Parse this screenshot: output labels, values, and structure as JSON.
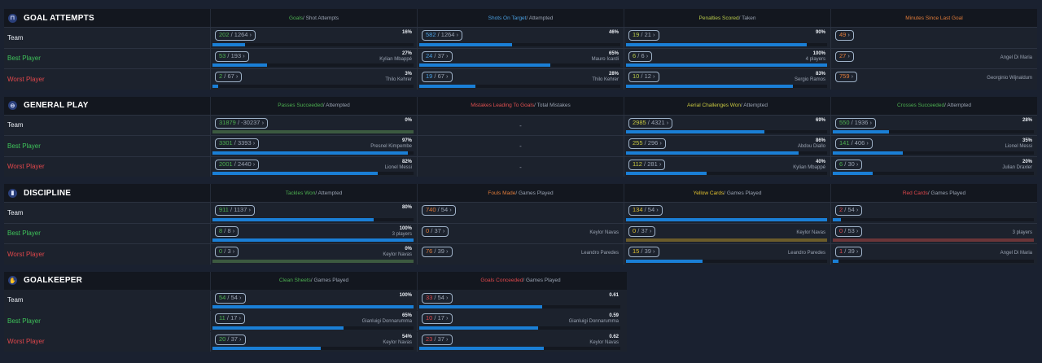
{
  "row_labels": {
    "team": {
      "text": "Team",
      "color": "#e8ecf2"
    },
    "best": {
      "text": "Best Player",
      "color": "#3ec45a"
    },
    "worst": {
      "text": "Worst Player",
      "color": "#e0474b"
    }
  },
  "sections": [
    {
      "title": "GOAL ATTEMPTS",
      "icon": "goal-icon",
      "glyph": "⊓",
      "columns": [
        {
          "hl": "Goals",
          "rest": " / Shot Attempts",
          "color": "#4caf50"
        },
        {
          "hl": "Shots On Target",
          "rest": " / Attempted",
          "color": "#4a9fe0"
        },
        {
          "hl": "Penalties Scored",
          "rest": " / Taken",
          "color": "#b8c94a"
        },
        {
          "hl": "Minutes Since Last Goal",
          "rest": "",
          "color": "#e07b39"
        }
      ],
      "rows": [
        {
          "key": "team",
          "cells": [
            {
              "a": "202",
              "b": "1264",
              "pct": "16%",
              "fill": 0.16
            },
            {
              "a": "582",
              "b": "1264",
              "pct": "46%",
              "fill": 0.46
            },
            {
              "a": "19",
              "b": "21",
              "pct": "90%",
              "fill": 0.9
            },
            {
              "a": "49"
            }
          ]
        },
        {
          "key": "best",
          "cells": [
            {
              "a": "53",
              "b": "193",
              "pct": "27%",
              "sub": "Kylian Mbappé",
              "fill": 0.27
            },
            {
              "a": "24",
              "b": "37",
              "pct": "65%",
              "sub": "Mauro Icardi",
              "fill": 0.65
            },
            {
              "a": "6",
              "b": "6",
              "pct": "100%",
              "sub": "4 players",
              "fill": 1
            },
            {
              "a": "27",
              "sub": "Angel Di Maria"
            }
          ]
        },
        {
          "key": "worst",
          "cells": [
            {
              "a": "2",
              "b": "67",
              "pct": "3%",
              "sub": "Thilo Kehrer",
              "fill": 0.03
            },
            {
              "a": "19",
              "b": "67",
              "pct": "28%",
              "sub": "Thilo Kehrer",
              "fill": 0.28
            },
            {
              "a": "10",
              "b": "12",
              "pct": "83%",
              "sub": "Sergio Ramos",
              "fill": 0.83
            },
            {
              "a": "759",
              "sub": "Georginio Wijnaldum"
            }
          ]
        }
      ]
    },
    {
      "title": "GENERAL PLAY",
      "icon": "globe-icon",
      "glyph": "⊖",
      "columns": [
        {
          "hl": "Passes Succeeded",
          "rest": " / Attempted",
          "color": "#4caf50"
        },
        {
          "hl": "Mistakes Leading To Goals",
          "rest": " / Total Mistakes",
          "color": "#e05050"
        },
        {
          "hl": "Aerial Challenges Won",
          "rest": " / Attempted",
          "color": "#c8c840"
        },
        {
          "hl": "Crosses Succeeded",
          "rest": " / Attempted",
          "color": "#4caf50"
        }
      ],
      "rows": [
        {
          "key": "team",
          "cells": [
            {
              "a": "31879",
              "b": "-30237",
              "pct": "0%",
              "fill": 0,
              "track": "#3c5a40"
            },
            {
              "dash": "-"
            },
            {
              "a": "2985",
              "b": "4321",
              "pct": "69%",
              "fill": 0.69
            },
            {
              "a": "550",
              "b": "1936",
              "pct": "28%",
              "fill": 0.28
            }
          ]
        },
        {
          "key": "best",
          "cells": [
            {
              "a": "3301",
              "b": "3393",
              "pct": "97%",
              "sub": "Presnel Kimpembe",
              "fill": 0.97
            },
            {
              "dash": "-"
            },
            {
              "a": "255",
              "b": "296",
              "pct": "86%",
              "sub": "Abdou Diallo",
              "fill": 0.86
            },
            {
              "a": "141",
              "b": "406",
              "pct": "35%",
              "sub": "Lionel Messi",
              "fill": 0.35
            }
          ]
        },
        {
          "key": "worst",
          "cells": [
            {
              "a": "2001",
              "b": "2440",
              "pct": "82%",
              "sub": "Lionel Messi",
              "fill": 0.82
            },
            {
              "dash": "-"
            },
            {
              "a": "112",
              "b": "281",
              "pct": "40%",
              "sub": "Kylian Mbappé",
              "fill": 0.4
            },
            {
              "a": "6",
              "b": "30",
              "pct": "20%",
              "sub": "Julian Draxler",
              "fill": 0.2
            }
          ]
        }
      ]
    },
    {
      "title": "DISCIPLINE",
      "icon": "card-icon",
      "glyph": "▮",
      "columns": [
        {
          "hl": "Tackles Won",
          "rest": " / Attempted",
          "color": "#4caf50"
        },
        {
          "hl": "Fouls Made",
          "rest": " / Games Played",
          "color": "#e07b39"
        },
        {
          "hl": "Yellow Cards",
          "rest": " / Games Played",
          "color": "#e0c030"
        },
        {
          "hl": "Red Cards",
          "rest": " / Games Played",
          "color": "#e0474b"
        }
      ],
      "rows": [
        {
          "key": "team",
          "cells": [
            {
              "a": "911",
              "b": "1137",
              "pct": "80%",
              "fill": 0.8
            },
            {
              "a": "740",
              "b": "54"
            },
            {
              "a": "134",
              "b": "54",
              "fill": 1
            },
            {
              "a": "2",
              "b": "54",
              "fill": 0.04
            }
          ]
        },
        {
          "key": "best",
          "cells": [
            {
              "a": "8",
              "b": "8",
              "pct": "100%",
              "sub": "3 players",
              "fill": 1
            },
            {
              "a": "0",
              "b": "37",
              "sub": "Keylor Navas"
            },
            {
              "a": "0",
              "b": "37",
              "sub": "Keylor Navas",
              "fill": 0,
              "track": "#6b5c2a"
            },
            {
              "a": "0",
              "b": "53",
              "sub": "3 players",
              "fill": 0,
              "track": "#6b3538"
            }
          ]
        },
        {
          "key": "worst",
          "cells": [
            {
              "a": "0",
              "b": "3",
              "pct": "0%",
              "sub": "Keylor Navas",
              "fill": 0,
              "track": "#3c5a40"
            },
            {
              "a": "76",
              "b": "39",
              "sub": "Leandro Paredes"
            },
            {
              "a": "15",
              "b": "39",
              "sub": "Leandro Paredes",
              "fill": 0.38
            },
            {
              "a": "1",
              "b": "39",
              "sub": "Angel Di Maria",
              "fill": 0.03
            }
          ]
        }
      ]
    },
    {
      "title": "GOALKEEPER",
      "icon": "glove-icon",
      "glyph": "✋",
      "columns": [
        {
          "hl": "Clean Sheets",
          "rest": " / Games Played",
          "color": "#4caf50"
        },
        {
          "hl": "Goals Conceeded",
          "rest": " / Games Played",
          "color": "#e0474b"
        }
      ],
      "rows": [
        {
          "key": "team",
          "cells": [
            {
              "a": "54",
              "b": "54",
              "pct": "100%",
              "fill": 1
            },
            {
              "a": "33",
              "b": "54",
              "pct": "0.61",
              "fill": 0.61
            }
          ]
        },
        {
          "key": "best",
          "cells": [
            {
              "a": "11",
              "b": "17",
              "pct": "65%",
              "sub": "Gianluigi Donnarumma",
              "fill": 0.65
            },
            {
              "a": "10",
              "b": "17",
              "pct": "0.59",
              "sub": "Gianluigi Donnarumma",
              "fill": 0.59
            }
          ]
        },
        {
          "key": "worst",
          "cells": [
            {
              "a": "20",
              "b": "37",
              "pct": "54%",
              "sub": "Keylor Navas",
              "fill": 0.54
            },
            {
              "a": "23",
              "b": "37",
              "pct": "0.62",
              "sub": "Keylor Navas",
              "fill": 0.62
            }
          ]
        }
      ]
    }
  ]
}
